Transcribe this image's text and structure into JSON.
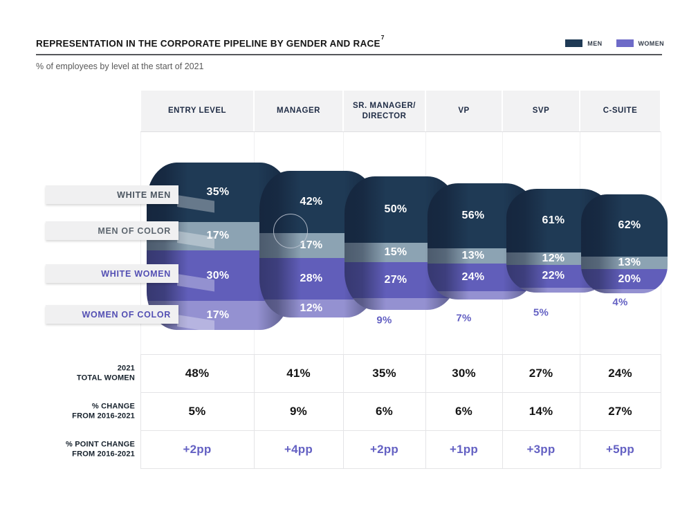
{
  "header": {
    "title": "REPRESENTATION IN THE CORPORATE PIPELINE BY GENDER AND RACE",
    "title_footnote": "7",
    "subtitle": "% of employees by level at the start of 2021",
    "legend": [
      {
        "label": "MEN",
        "color": "#1f3a55"
      },
      {
        "label": "WOMEN",
        "color": "#6e6bc8"
      }
    ]
  },
  "chart_data": {
    "type": "bar",
    "variant": "pipeline-funnel-stacked-cylinders",
    "title": "REPRESENTATION IN THE CORPORATE PIPELINE BY GENDER AND RACE",
    "subtitle": "% of employees by level at the start of 2021",
    "unit": "%",
    "legend_position": "top-right",
    "legend": [
      "MEN",
      "WOMEN"
    ],
    "categories": [
      "ENTRY LEVEL",
      "MANAGER",
      "SR. MANAGER/\nDIRECTOR",
      "VP",
      "SVP",
      "C-SUITE"
    ],
    "series": [
      {
        "name": "WHITE MEN",
        "group": "MEN",
        "color": "#1f3a55",
        "label_color": "#4b5560",
        "values": [
          35,
          42,
          50,
          56,
          61,
          62
        ],
        "label_positions": [
          "in",
          "in",
          "in",
          "in",
          "in",
          "in"
        ]
      },
      {
        "name": "MEN OF COLOR",
        "group": "MEN",
        "color": "#8ca3b3",
        "label_color": "#5d666f",
        "values": [
          17,
          17,
          15,
          13,
          12,
          13
        ],
        "label_positions": [
          "in",
          "in",
          "in",
          "in",
          "in",
          "in"
        ]
      },
      {
        "name": "WHITE WOMEN",
        "group": "WOMEN",
        "color": "#615eba",
        "label_color": "#534fb3",
        "values": [
          30,
          28,
          27,
          24,
          22,
          20
        ],
        "label_positions": [
          "in",
          "in",
          "in",
          "in",
          "in",
          "in"
        ]
      },
      {
        "name": "WOMEN OF COLOR",
        "group": "WOMEN",
        "color": "#9491d1",
        "label_color": "#534fb3",
        "values": [
          17,
          12,
          9,
          7,
          5,
          4
        ],
        "label_positions": [
          "in",
          "in",
          "below",
          "below",
          "below",
          "below"
        ]
      }
    ],
    "summary_rows": [
      {
        "label_lines": [
          "2021",
          "TOTAL WOMEN"
        ],
        "values": [
          "48%",
          "41%",
          "35%",
          "30%",
          "27%",
          "24%"
        ],
        "value_color": "#141414"
      },
      {
        "label_lines": [
          "% CHANGE",
          "FROM 2016-2021"
        ],
        "values": [
          "5%",
          "9%",
          "6%",
          "6%",
          "14%",
          "27%"
        ],
        "value_color": "#141414"
      },
      {
        "label_lines": [
          "% POINT CHANGE",
          "FROM 2016-2021"
        ],
        "values": [
          "+2pp",
          "+4pp",
          "+2pp",
          "+1pp",
          "+3pp",
          "+5pp"
        ],
        "value_color": "#6461c3"
      }
    ]
  }
}
